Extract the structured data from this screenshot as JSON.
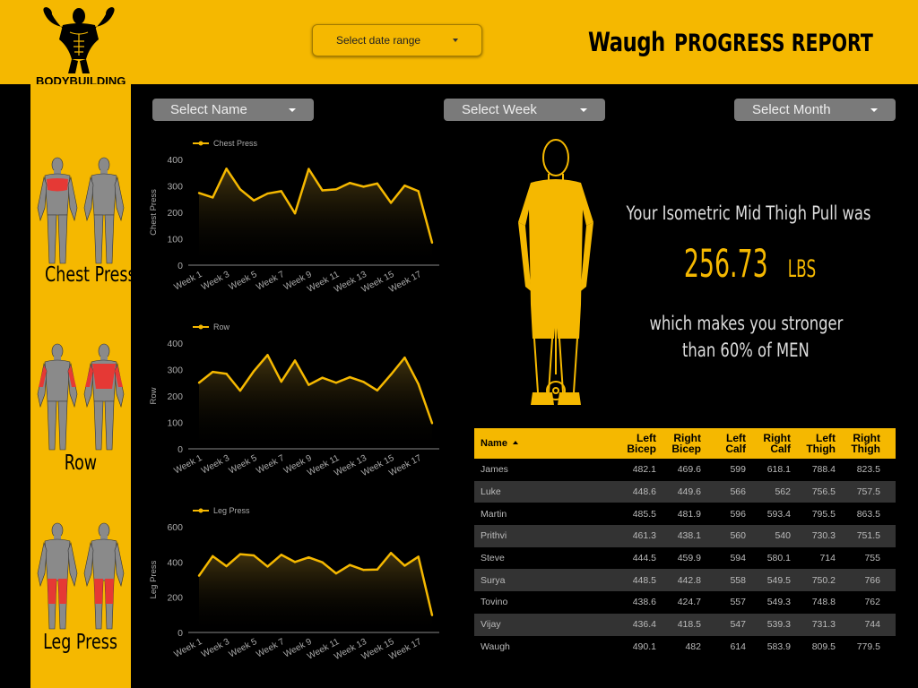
{
  "header": {
    "brand": "BODYBUILDING",
    "date_range_label": "Select date range",
    "title_name": "Waugh",
    "title_rest": "PROGRESS REPORT"
  },
  "filters": {
    "name": "Select Name",
    "week": "Select Week",
    "month": "Select Month"
  },
  "sidebar": {
    "exercises": [
      "Chest Press",
      "Row",
      "Leg Press"
    ]
  },
  "colors": {
    "accent": "#f5b800",
    "background": "#000000",
    "highlight_muscle": "#e53935",
    "body_gray": "#8a8a8a"
  },
  "summary": {
    "line1": "Your Isometric Mid Thigh Pull was",
    "value": "256.73",
    "unit": "LBS",
    "line2": "which makes you stronger",
    "line3": "than 60% of MEN"
  },
  "chart_data": [
    {
      "type": "line",
      "title": "",
      "legend": "Chest Press",
      "ylabel": "Chest Press",
      "xlabel": "",
      "ylim": [
        0,
        400
      ],
      "yticks": [
        0,
        100,
        200,
        300,
        400
      ],
      "x_labels": [
        "Week 1",
        "Week 3",
        "Week 5",
        "Week 7",
        "Week 9",
        "Week 11",
        "Week 13",
        "Week 15",
        "Week 17"
      ],
      "x": [
        1,
        2,
        3,
        4,
        5,
        6,
        7,
        8,
        9,
        10,
        11,
        12,
        13,
        14,
        15,
        16,
        17,
        18
      ],
      "series": [
        {
          "name": "Chest Press",
          "values": [
            273,
            256,
            365,
            287,
            245,
            271,
            280,
            196,
            364,
            283,
            287,
            311,
            297,
            309,
            236,
            301,
            280,
            85
          ]
        }
      ]
    },
    {
      "type": "line",
      "title": "",
      "legend": "Row",
      "ylabel": "Row",
      "xlabel": "",
      "ylim": [
        0,
        400
      ],
      "yticks": [
        0,
        100,
        200,
        300,
        400
      ],
      "x_labels": [
        "Week 1",
        "Week 3",
        "Week 5",
        "Week 7",
        "Week 9",
        "Week 11",
        "Week 13",
        "Week 15",
        "Week 17"
      ],
      "x": [
        1,
        2,
        3,
        4,
        5,
        6,
        7,
        8,
        9,
        10,
        11,
        12,
        13,
        14,
        15,
        16,
        17,
        18
      ],
      "series": [
        {
          "name": "Row",
          "values": [
            250,
            291,
            284,
            220,
            294,
            355,
            254,
            334,
            242,
            269,
            250,
            271,
            253,
            221,
            281,
            345,
            245,
            97
          ]
        }
      ]
    },
    {
      "type": "line",
      "title": "",
      "legend": "Leg Press",
      "ylabel": "Leg Press",
      "xlabel": "",
      "ylim": [
        0,
        600
      ],
      "yticks": [
        0,
        200,
        400,
        600
      ],
      "x_labels": [
        "Week 1",
        "Week 3",
        "Week 5",
        "Week 7",
        "Week 9",
        "Week 11",
        "Week 13",
        "Week 15",
        "Week 17"
      ],
      "x": [
        1,
        2,
        3,
        4,
        5,
        6,
        7,
        8,
        9,
        10,
        11,
        12,
        13,
        14,
        15,
        16,
        17,
        18
      ],
      "series": [
        {
          "name": "Leg Press",
          "values": [
            322,
            433,
            376,
            444,
            437,
            374,
            441,
            400,
            426,
            398,
            335,
            383,
            355,
            357,
            451,
            379,
            430,
            98
          ]
        }
      ]
    }
  ],
  "table": {
    "columns": [
      {
        "label": "Name",
        "label2": ""
      },
      {
        "label": "Left",
        "label2": "Bicep"
      },
      {
        "label": "Right",
        "label2": "Bicep"
      },
      {
        "label": "Left",
        "label2": "Calf"
      },
      {
        "label": "Right",
        "label2": "Calf"
      },
      {
        "label": "Left",
        "label2": "Thigh"
      },
      {
        "label": "Right",
        "label2": "Thigh"
      }
    ],
    "rows": [
      [
        "James",
        "482.1",
        "469.6",
        "599",
        "618.1",
        "788.4",
        "823.5"
      ],
      [
        "Luke",
        "448.6",
        "449.6",
        "566",
        "562",
        "756.5",
        "757.5"
      ],
      [
        "Martin",
        "485.5",
        "481.9",
        "596",
        "593.4",
        "795.5",
        "863.5"
      ],
      [
        "Prithvi",
        "461.3",
        "438.1",
        "560",
        "540",
        "730.3",
        "751.5"
      ],
      [
        "Steve",
        "444.5",
        "459.9",
        "594",
        "580.1",
        "714",
        "755"
      ],
      [
        "Surya",
        "448.5",
        "442.8",
        "558",
        "549.5",
        "750.2",
        "766"
      ],
      [
        "Tovino",
        "438.6",
        "424.7",
        "557",
        "549.3",
        "748.8",
        "762"
      ],
      [
        "Vijay",
        "436.4",
        "418.5",
        "547",
        "539.3",
        "731.3",
        "744"
      ],
      [
        "Waugh",
        "490.1",
        "482",
        "614",
        "583.9",
        "809.5",
        "779.5"
      ]
    ]
  }
}
